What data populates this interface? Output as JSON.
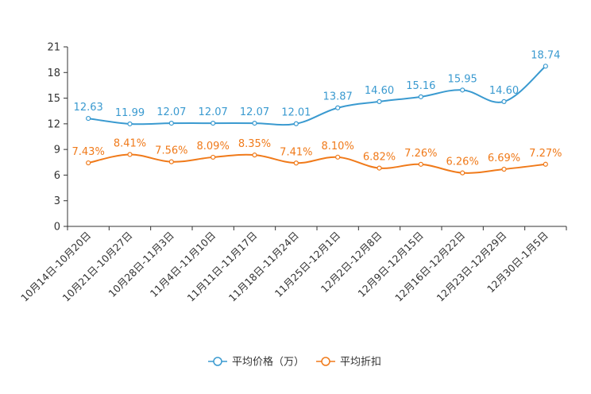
{
  "chart_data": {
    "type": "line",
    "title": "",
    "xlabel": "",
    "ylabel": "",
    "ylim": [
      0,
      21
    ],
    "yticks": [
      "0",
      "3",
      "6",
      "9",
      "12",
      "15",
      "18",
      "21"
    ],
    "categories": [
      "10月14日-10月20日",
      "10月21日-10月27日",
      "10月28日-11月3日",
      "11月4日-11月10日",
      "11月11日-11月17日",
      "11月18日-11月24日",
      "11月25日-12月1日",
      "12月2日-12月8日",
      "12月9日-12月15日",
      "12月16日-12月22日",
      "12月23日-12月29日",
      "12月30日-1月5日"
    ],
    "series": [
      {
        "name": "平均价格（万）",
        "color": "#3a9ad0",
        "values": [
          12.63,
          11.99,
          12.07,
          12.07,
          12.07,
          12.01,
          13.87,
          14.6,
          15.16,
          15.95,
          14.6,
          18.74
        ],
        "labels": [
          "12.63",
          "11.99",
          "12.07",
          "12.07",
          "12.07",
          "12.01",
          "13.87",
          "14.60",
          "15.16",
          "15.95",
          "14.60",
          "18.74"
        ]
      },
      {
        "name": "平均折扣",
        "color": "#f07a1a",
        "values": [
          7.43,
          8.41,
          7.56,
          8.09,
          8.35,
          7.41,
          8.1,
          6.82,
          7.26,
          6.26,
          6.69,
          7.27
        ],
        "labels": [
          "7.43%",
          "8.41%",
          "7.56%",
          "8.09%",
          "8.35%",
          "7.41%",
          "8.10%",
          "6.82%",
          "7.26%",
          "6.26%",
          "6.69%",
          "7.27%"
        ]
      }
    ],
    "legend_position": "bottom-center",
    "grid": false
  }
}
